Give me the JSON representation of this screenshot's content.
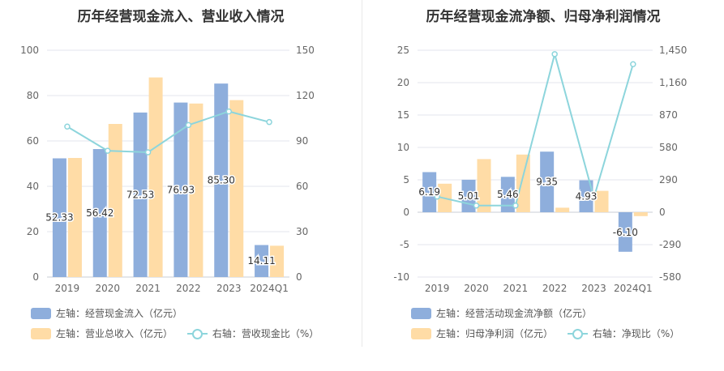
{
  "chart_data": [
    {
      "type": "bar",
      "title": "历年经营现金流入、营业收入情况",
      "categories": [
        "2019",
        "2020",
        "2021",
        "2022",
        "2023",
        "2024Q1"
      ],
      "left_axis": {
        "ticks": [
          "0",
          "20",
          "40",
          "60",
          "80",
          "100"
        ],
        "ylim": [
          0,
          100
        ]
      },
      "right_axis": {
        "ticks": [
          "0",
          "30",
          "60",
          "90",
          "120",
          "150"
        ],
        "ylim": [
          0,
          150
        ]
      },
      "series": [
        {
          "name": "左轴：经营现金流入（亿元）",
          "kind": "bar",
          "axis": "left",
          "color": "#8eaedc",
          "values": [
            52.33,
            56.42,
            72.53,
            76.93,
            85.3,
            14.11
          ],
          "labels": [
            "52.33",
            "56.42",
            "72.53",
            "76.93",
            "85.30",
            "14.11"
          ]
        },
        {
          "name": "左轴：营业总收入（亿元）",
          "kind": "bar",
          "axis": "left",
          "color": "#ffdca6",
          "values": [
            52.5,
            67.5,
            88.0,
            76.5,
            78.0,
            13.8
          ]
        },
        {
          "name": "右轴：营收现金比（%）",
          "kind": "line",
          "axis": "right",
          "color": "#8dd5dc",
          "values": [
            99.5,
            83.5,
            82.5,
            100.5,
            109.5,
            102.5
          ]
        }
      ],
      "grid": true,
      "legend_position": "bottom"
    },
    {
      "type": "bar",
      "title": "历年经营现金流净额、归母净利润情况",
      "categories": [
        "2019",
        "2020",
        "2021",
        "2022",
        "2023",
        "2024Q1"
      ],
      "left_axis": {
        "ticks": [
          "-10",
          "-5",
          "0",
          "5",
          "10",
          "15",
          "20",
          "25"
        ],
        "ylim": [
          -10,
          25
        ]
      },
      "right_axis": {
        "ticks": [
          "-580",
          "-290",
          "0",
          "290",
          "580",
          "870",
          "1,160",
          "1,450"
        ],
        "ylim": [
          -580,
          1450
        ]
      },
      "series": [
        {
          "name": "左轴：经营活动现金流净额（亿元）",
          "kind": "bar",
          "axis": "left",
          "color": "#8eaedc",
          "values": [
            6.19,
            5.01,
            5.46,
            9.35,
            4.93,
            -6.1
          ],
          "labels": [
            "6.19",
            "5.01",
            "5.46",
            "9.35",
            "4.93",
            "-6.10"
          ]
        },
        {
          "name": "左轴：归母净利润（亿元）",
          "kind": "bar",
          "axis": "left",
          "color": "#ffdca6",
          "values": [
            4.4,
            8.2,
            8.9,
            0.7,
            3.3,
            -0.6
          ]
        },
        {
          "name": "右轴：净现比（%）",
          "kind": "line",
          "axis": "right",
          "color": "#8dd5dc",
          "values": [
            140,
            60,
            60,
            1415,
            130,
            1325
          ]
        }
      ],
      "grid": true,
      "legend_position": "bottom"
    }
  ]
}
